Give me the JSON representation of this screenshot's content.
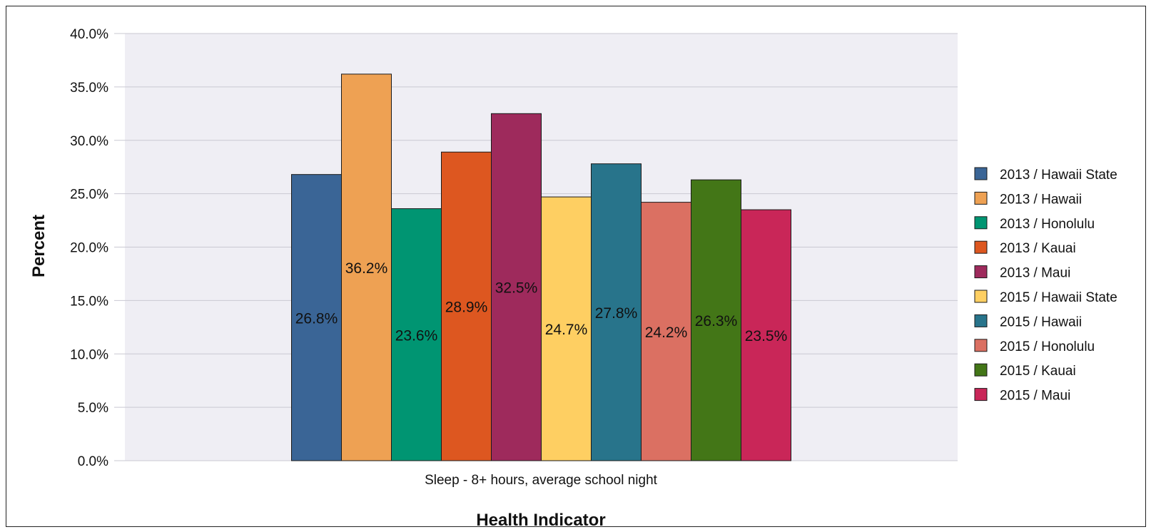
{
  "chart_data": {
    "type": "bar",
    "categories": [
      "Sleep - 8+ hours, average school night"
    ],
    "series": [
      {
        "name": "2013 / Hawaii State",
        "values": [
          26.8
        ],
        "color": "#3a6596"
      },
      {
        "name": "2013 / Hawaii",
        "values": [
          36.2
        ],
        "color": "#eea153"
      },
      {
        "name": "2013 / Honolulu",
        "values": [
          23.6
        ],
        "color": "#009572"
      },
      {
        "name": "2013 / Kauai",
        "values": [
          28.9
        ],
        "color": "#dd5720"
      },
      {
        "name": "2013 / Maui",
        "values": [
          32.5
        ],
        "color": "#9e2a5c"
      },
      {
        "name": "2015 / Hawaii State",
        "values": [
          24.7
        ],
        "color": "#fecf62"
      },
      {
        "name": "2015 / Hawaii",
        "values": [
          27.8
        ],
        "color": "#28748b"
      },
      {
        "name": "2015 / Honolulu",
        "values": [
          24.2
        ],
        "color": "#db7062"
      },
      {
        "name": "2015 / Kauai",
        "values": [
          26.3
        ],
        "color": "#437617"
      },
      {
        "name": "2015 / Maui",
        "values": [
          23.5
        ],
        "color": "#c92658"
      }
    ],
    "data_labels": [
      "26.8%",
      "36.2%",
      "23.6%",
      "28.9%",
      "32.5%",
      "24.7%",
      "27.8%",
      "24.2%",
      "26.3%",
      "23.5%"
    ],
    "title": "",
    "xlabel": "Health Indicator",
    "ylabel": "Percent",
    "ylim": [
      0,
      40
    ],
    "yticks": [
      0,
      5,
      10,
      15,
      20,
      25,
      30,
      35,
      40
    ],
    "ytick_labels": [
      "0.0%",
      "5.0%",
      "10.0%",
      "15.0%",
      "20.0%",
      "25.0%",
      "30.0%",
      "35.0%",
      "40.0%"
    ],
    "grid": true,
    "legend_position": "right",
    "plot_background": "#efeef4"
  }
}
